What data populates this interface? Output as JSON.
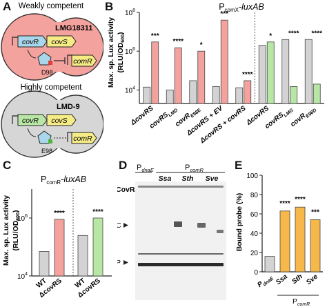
{
  "panels": {
    "A": "A",
    "B": "B",
    "C": "C",
    "D": "D",
    "E": "E"
  },
  "panel_a": {
    "weak_label": "Weakly competent",
    "weak_strain": "LMG18311",
    "weak_covR": "covR",
    "weak_covS": "covS",
    "weak_comR": "comR",
    "weak_site": "D98",
    "high_label": "Highly competent",
    "high_strain": "LMD-9",
    "high_covR": "covR",
    "high_covS": "covS",
    "high_comR": "comR",
    "high_site": "E98",
    "colors": {
      "cell": "#f4a29e",
      "cell2": "#d6d6d6",
      "covR": "#a9d6ea",
      "covS": "#f6ec86",
      "comR": "#f6ec86",
      "highcovR": "#b8e7a5",
      "pentagon": "#a9d6ea",
      "phos_red": "#e0403a",
      "phos_green": "#50b33f"
    }
  },
  "chart_b": {
    "title": "P",
    "title_sub": "comX",
    "title_rest": "-luxAB",
    "ylabel": "Max. sp. Lux activity",
    "ylabel2": "(RLU/OD",
    "ylabel2_sub": "600",
    "ylabel2_end": ")",
    "yticks": [
      {
        "v": 10000,
        "base": "10",
        "exp": "4"
      },
      {
        "v": 1000000,
        "base": "10",
        "exp": "6"
      },
      {
        "v": 100000000,
        "base": "10",
        "exp": "8"
      }
    ],
    "groups": [
      {
        "main": "ΔcovRS",
        "sub": ""
      },
      {
        "main": "covRS",
        "sub": "LMD"
      },
      {
        "main": "covR",
        "sub": "E98E"
      },
      {
        "main": "ΔcovRS + EV",
        "sub": ""
      },
      {
        "main": "ΔcovRS + covRS",
        "sub": ""
      },
      {
        "main": "ΔcovRS",
        "sub": ""
      },
      {
        "main": "covRS",
        "sub": "LMG"
      },
      {
        "main": "covR",
        "sub": "E98D"
      }
    ],
    "stars": [
      "***",
      "****",
      "*",
      "***",
      "****",
      "*",
      "****",
      "****"
    ]
  },
  "chart_data": [
    {
      "type": "bar",
      "panel": "B",
      "title": "PcomX-luxAB",
      "ylabel": "Max. sp. Lux activity (RLU/OD600)",
      "scale": "log",
      "ylim": [
        2000,
        100000000
      ],
      "categories": [
        "ΔcovRS",
        "covRSLMD",
        "covRE98E",
        "ΔcovRS + EV",
        "ΔcovRS + covRS",
        "ΔcovRS",
        "covRSLMG",
        "covRE98D"
      ],
      "series": [
        {
          "values": [
            14000,
            10000,
            30000,
            15000,
            13000,
            2000000,
            4000000,
            4000000
          ],
          "color": "#d3d3d3"
        },
        {
          "values": [
            3000000,
            1500000,
            1000000,
            40000000,
            30000,
            3000000,
            15000,
            20000
          ],
          "colors": [
            "#f4a29e",
            "#f4a29e",
            "#f4a29e",
            "#f4a29e",
            "#f4a29e",
            "#b8e7a5",
            "#b8e7a5",
            "#b8e7a5"
          ]
        }
      ]
    },
    {
      "type": "bar",
      "panel": "C",
      "title": "PcomR-luxAB",
      "ylabel": "Max. sp. Lux activity (RLU/OD600)",
      "scale": "log",
      "ylim": [
        10000,
        10000000
      ],
      "categories": [
        "WT",
        "ΔcovRS",
        "WT",
        "ΔcovRS"
      ],
      "values": [
        70000,
        900000,
        250000,
        1000000
      ],
      "colors": [
        "#d3d3d3",
        "#f4a29e",
        "#d3d3d3",
        "#b8e7a5"
      ]
    },
    {
      "type": "bar",
      "panel": "E",
      "ylabel": "Bound probe (%)",
      "ylim": [
        0,
        100
      ],
      "categories": [
        "PdnaE",
        "Ssa",
        "Sth",
        "Sve"
      ],
      "values": [
        16,
        63,
        67,
        54
      ],
      "colors": [
        "#d3d3d3",
        "#f6b84a",
        "#f6b84a",
        "#f6b84a"
      ]
    }
  ],
  "chart_c": {
    "title": "P",
    "title_sub": "comR",
    "title_rest": "-luxAB",
    "ylabel": "Max. sp. Lux activity",
    "ylabel2": "(RLU/OD",
    "ylabel2_sub": "600",
    "ylabel2_end": ")",
    "yticks": [
      {
        "v": 10000,
        "base": "10",
        "exp": "4"
      },
      {
        "v": 1000000,
        "base": "10",
        "exp": "6"
      }
    ],
    "xlabels": [
      "WT",
      "ΔcovRS",
      "WT",
      "ΔcovRS"
    ],
    "stars": [
      "****",
      "****"
    ]
  },
  "panel_d": {
    "pdnae_main": "P",
    "pdnae_sub": "dnaE",
    "pcomr_main": "P",
    "pcomr_sub": "comR",
    "species": [
      "Ssa",
      "Sth",
      "Sve"
    ],
    "covr_label": "CovR",
    "covr_sub": "WT",
    "signs": [
      "-",
      "+",
      "-",
      "+",
      "-",
      "+",
      "-",
      "+"
    ],
    "c_label": "C",
    "p_label": "P"
  },
  "chart_e": {
    "ylabel": "Bound probe (%)",
    "yticks": [
      0,
      20,
      40,
      60,
      80,
      100
    ],
    "xlabels": [
      {
        "main": "P",
        "sub": "dnaE"
      },
      {
        "main": "Ssa",
        "sub": ""
      },
      {
        "main": "Sth",
        "sub": ""
      },
      {
        "main": "Sve",
        "sub": ""
      }
    ],
    "group_main": "P",
    "group_sub": "comR",
    "stars": [
      "",
      "****",
      "****",
      "***"
    ]
  }
}
